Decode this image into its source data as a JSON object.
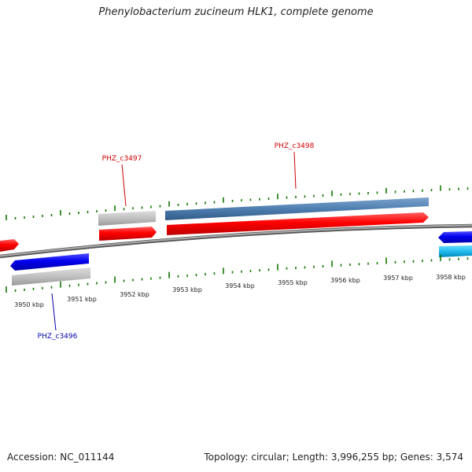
{
  "title": "Phenylobacterium zucineum HLK1, complete genome",
  "accession": "Accession: NC_011144",
  "stats": "Topology: circular; Length: 3,996,255 bp; Genes: 3,574",
  "scale_labels": [
    "3950 kbp",
    "3951 kbp",
    "3952 kbp",
    "3953 kbp",
    "3954 kbp",
    "3955 kbp",
    "3956 kbp",
    "3957 kbp",
    "3958 kbp"
  ],
  "gene_labels": [
    {
      "name": "PHZ_c3497",
      "color": "#cc0000"
    },
    {
      "name": "PHZ_c3498",
      "color": "#cc0000"
    },
    {
      "name": "PHZ_c3496",
      "color": "#0000aa"
    }
  ],
  "colors": {
    "forward_cds": "#ee0000",
    "reverse_cds": "#0000ee",
    "rna": "#4f7fb0",
    "pseudo": "#bbbbbb",
    "light_blue": "#22bbee",
    "backbone": "#808080",
    "gc_skew": "#117700"
  }
}
